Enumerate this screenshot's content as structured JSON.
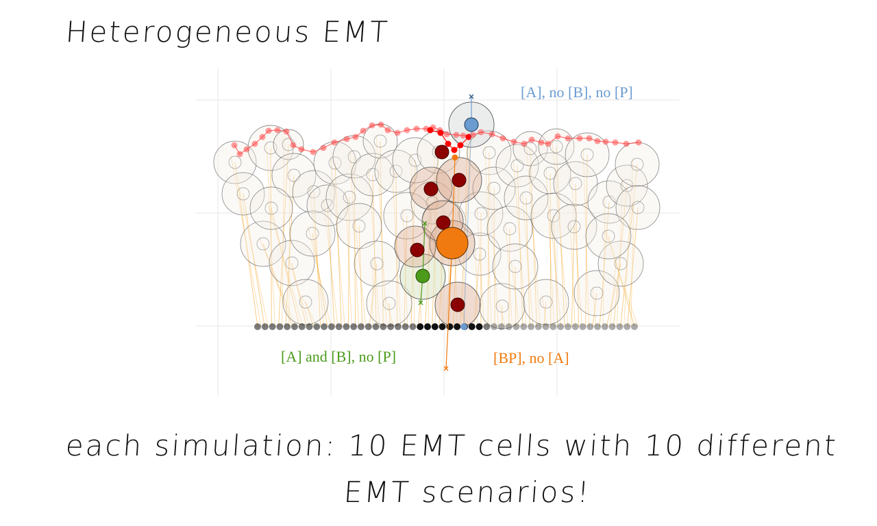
{
  "title": "Heterogeneous EMT",
  "caption": {
    "line1": "each simulation:   10 EMT cells with 10 different",
    "line2": "EMT scenarios!"
  },
  "legend": {
    "blue": "[A], no [B], no [P]",
    "green": "[A] and [B], no [P]",
    "orange": "[BP], no [A]"
  },
  "colors": {
    "blue": "#6b9bd0",
    "green": "#4b9a19",
    "orange": "#f07a10",
    "dark_red": "#8b0000",
    "surface_red": "#ff3b3b",
    "line_orange": "#f5a623",
    "grid": "#e6e6e6",
    "outline": "#555555"
  }
}
